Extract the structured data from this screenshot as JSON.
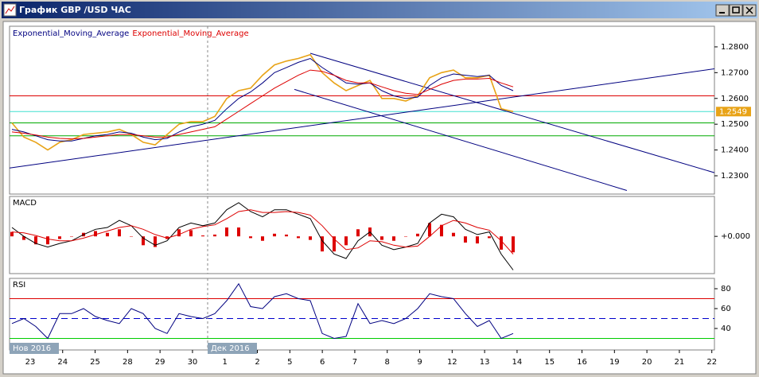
{
  "window": {
    "title": "График GBP /USD  ЧАС"
  },
  "chart_data": [
    {
      "type": "line",
      "xlim": [
        -0.2,
        58.87
      ],
      "ylim": [
        1.2229,
        1.288
      ],
      "yticks": [
        {
          "value": 1.23,
          "label": "1.2300"
        },
        {
          "value": 1.24,
          "label": "1.2400"
        },
        {
          "value": 1.25,
          "label": "1.2500"
        },
        {
          "value": 1.26,
          "label": "1.2600"
        },
        {
          "value": 1.27,
          "label": "1.2700"
        },
        {
          "value": 1.28,
          "label": "1.2800"
        }
      ],
      "series": [
        {
          "color": "#e8a317",
          "values": [
            1.2505,
            1.245,
            1.243,
            1.24,
            1.243,
            1.244,
            1.246,
            1.2465,
            1.247,
            1.248,
            1.246,
            1.243,
            1.242,
            1.246,
            1.25,
            1.251,
            1.251,
            1.253,
            1.26,
            1.263,
            1.264,
            1.269,
            1.273,
            1.2745,
            1.2755,
            1.277,
            1.27,
            1.266,
            1.263,
            1.265,
            1.267,
            1.26,
            1.26,
            1.259,
            1.261,
            1.268,
            1.27,
            1.271,
            1.268,
            1.268,
            1.269,
            1.256,
            1.2549
          ]
        },
        {
          "name": "Exponential_Moving_Average",
          "color": "#000080",
          "values": [
            1.248,
            1.247,
            1.2455,
            1.244,
            1.2435,
            1.2435,
            1.2445,
            1.2455,
            1.246,
            1.247,
            1.2465,
            1.245,
            1.244,
            1.2445,
            1.247,
            1.249,
            1.25,
            1.2515,
            1.256,
            1.26,
            1.2625,
            1.266,
            1.27,
            1.272,
            1.274,
            1.2755,
            1.272,
            1.269,
            1.266,
            1.2655,
            1.266,
            1.263,
            1.261,
            1.26,
            1.2605,
            1.265,
            1.268,
            1.2695,
            1.269,
            1.2685,
            1.269,
            1.265,
            1.263
          ]
        },
        {
          "name": "Exponential_Moving_Average",
          "color": "#dd0000",
          "values": [
            1.247,
            1.2465,
            1.2458,
            1.245,
            1.2445,
            1.2443,
            1.2445,
            1.245,
            1.2455,
            1.246,
            1.246,
            1.2455,
            1.245,
            1.245,
            1.246,
            1.247,
            1.248,
            1.249,
            1.252,
            1.255,
            1.258,
            1.261,
            1.264,
            1.2665,
            1.269,
            1.271,
            1.2705,
            1.269,
            1.267,
            1.266,
            1.266,
            1.2645,
            1.263,
            1.262,
            1.2615,
            1.2635,
            1.2655,
            1.267,
            1.2675,
            1.2675,
            1.2678,
            1.266,
            1.2645
          ]
        }
      ],
      "levels": [
        {
          "value": 1.261,
          "color": "#dd0000"
        },
        {
          "value": 1.2549,
          "color": "#40e0d0"
        },
        {
          "value": 1.2505,
          "color": "#00aa00"
        },
        {
          "value": 1.2455,
          "color": "#00aa00"
        }
      ],
      "trendlines": [
        {
          "x": [
            -0.2,
            58.87
          ],
          "y": [
            1.233,
            1.2715
          ],
          "color": "#000080"
        },
        {
          "x": [
            25,
            58.87
          ],
          "y": [
            1.2775,
            1.2312
          ],
          "color": "#000080"
        },
        {
          "x": [
            23.67,
            51.53
          ],
          "y": [
            1.2635,
            1.2243
          ],
          "color": "#000080"
        }
      ],
      "price_label": {
        "value": 1.2549,
        "label": "1.2549"
      }
    },
    {
      "type": "line",
      "title": "MACD",
      "xlim": [
        -0.2,
        58.87
      ],
      "ylim": [
        -0.0042,
        0.0045
      ],
      "yticks": [
        {
          "value": 0,
          "label": "+0.000"
        }
      ],
      "series": [
        {
          "kind": "histogram",
          "color": "#dd0000",
          "values": [
            0.0005,
            -0.0004,
            -0.0009,
            -0.0009,
            -0.0003,
            0,
            0.0004,
            0.0006,
            0.0004,
            0.0008,
            0,
            -0.001,
            -0.0012,
            -0.0003,
            0.0008,
            0.0007,
            0.0001,
            0.0002,
            0.001,
            0.001,
            -0.0002,
            -0.0005,
            0.0003,
            0.0002,
            -0.0002,
            -0.0004,
            -0.0017,
            -0.0017,
            -0.001,
            0.0008,
            0.001,
            -0.0004,
            -0.0005,
            0,
            0.0003,
            0.0015,
            0.0013,
            0.0004,
            -0.0007,
            -0.0008,
            -0.0002,
            -0.0015,
            -0.0018
          ]
        },
        {
          "color": "#000000",
          "values": [
            0.001,
            0,
            -0.0008,
            -0.0012,
            -0.0008,
            -0.0005,
            0.0002,
            0.0008,
            0.001,
            0.0018,
            0.0012,
            -0.0002,
            -0.001,
            -0.0005,
            0.001,
            0.0015,
            0.0012,
            0.0015,
            0.003,
            0.0038,
            0.0028,
            0.0022,
            0.003,
            0.003,
            0.0025,
            0.002,
            -0.0005,
            -0.002,
            -0.0025,
            -0.0005,
            0.0005,
            -0.001,
            -0.0015,
            -0.0012,
            -0.0008,
            0.0015,
            0.0025,
            0.0022,
            0.0008,
            0.0002,
            0.0005,
            -0.002,
            -0.0038
          ]
        },
        {
          "color": "#dd0000",
          "values": [
            0.0005,
            0.0004,
            0.0001,
            -0.0003,
            -0.0005,
            -0.0005,
            -0.0002,
            0.0002,
            0.0006,
            0.001,
            0.0012,
            0.0008,
            0.0002,
            -0.0002,
            0.0002,
            0.0008,
            0.0011,
            0.0013,
            0.002,
            0.0028,
            0.003,
            0.0027,
            0.0027,
            0.0028,
            0.0027,
            0.0024,
            0.0012,
            -0.0003,
            -0.0015,
            -0.0013,
            -0.0005,
            -0.0006,
            -0.001,
            -0.0012,
            -0.0011,
            0,
            0.0012,
            0.0018,
            0.0015,
            0.001,
            0.0007,
            -0.0005,
            -0.002
          ]
        }
      ]
    },
    {
      "type": "line",
      "title": "RSI",
      "xlim": [
        -0.2,
        58.87
      ],
      "ylim": [
        18.4,
        90.4
      ],
      "yticks": [
        40,
        60,
        80
      ],
      "series": [
        {
          "color": "#000080",
          "values": [
            45,
            50,
            42,
            30,
            55,
            55,
            60,
            52,
            48,
            45,
            60,
            55,
            40,
            35,
            55,
            52,
            50,
            55,
            68,
            85,
            62,
            60,
            72,
            75,
            70,
            68,
            35,
            30,
            32,
            65,
            45,
            48,
            45,
            50,
            60,
            75,
            72,
            70,
            55,
            42,
            48,
            30,
            35
          ]
        }
      ],
      "levels": [
        {
          "value": 70,
          "color": "#dd0000"
        },
        {
          "value": 50,
          "color": "#0000cc",
          "dash": true
        },
        {
          "value": 30,
          "color": "#00cc00"
        }
      ],
      "xticks": [
        {
          "value": 1.53,
          "label": "23"
        },
        {
          "value": 4.25,
          "label": "24"
        },
        {
          "value": 6.97,
          "label": "25"
        },
        {
          "value": 9.69,
          "label": "28"
        },
        {
          "value": 12.41,
          "label": "29"
        },
        {
          "value": 15.13,
          "label": "30"
        },
        {
          "value": 17.85,
          "label": "1"
        },
        {
          "value": 20.57,
          "label": "2"
        },
        {
          "value": 23.29,
          "label": "5"
        },
        {
          "value": 26.01,
          "label": "6"
        },
        {
          "value": 28.73,
          "label": "7"
        },
        {
          "value": 31.45,
          "label": "8"
        },
        {
          "value": 34.17,
          "label": "9"
        },
        {
          "value": 36.89,
          "label": "12"
        },
        {
          "value": 39.61,
          "label": "13"
        },
        {
          "value": 42.33,
          "label": "14"
        },
        {
          "value": 45.05,
          "label": "15"
        },
        {
          "value": 47.77,
          "label": "16"
        },
        {
          "value": 50.49,
          "label": "19"
        },
        {
          "value": 53.21,
          "label": "20"
        },
        {
          "value": 55.93,
          "label": "21"
        },
        {
          "value": 58.65,
          "label": "22"
        }
      ],
      "xmarkers": [
        {
          "value": -0.2,
          "label": "Нов 2016"
        },
        {
          "value": 16.4,
          "label": "Дек 2016"
        }
      ]
    }
  ]
}
